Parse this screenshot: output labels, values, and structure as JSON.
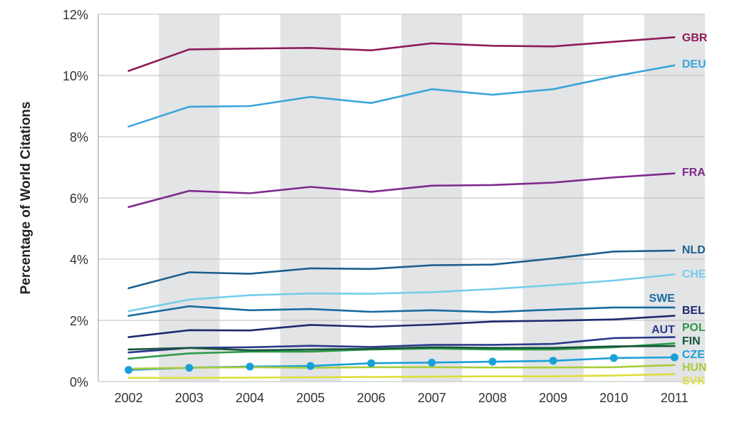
{
  "chart_data": {
    "type": "line",
    "title": "",
    "xlabel": "",
    "ylabel": "Percentage of World Citations",
    "x": [
      "2002",
      "2003",
      "2004",
      "2005",
      "2006",
      "2007",
      "2008",
      "2009",
      "2010",
      "2011"
    ],
    "ylim": [
      0,
      12
    ],
    "yticks": [
      0,
      2,
      4,
      6,
      8,
      10,
      12
    ],
    "ytick_labels": [
      "0%",
      "2%",
      "4%",
      "6%",
      "8%",
      "10%",
      "12%"
    ],
    "grid": "horizontal",
    "shaded_alternate_columns": true,
    "legend": "direct labels at right end of lines",
    "series": [
      {
        "name": "GBR",
        "color": "#8e1c5a",
        "values": [
          10.15,
          10.85,
          10.88,
          10.9,
          10.82,
          11.05,
          10.97,
          10.95,
          11.1,
          11.25
        ]
      },
      {
        "name": "DEU",
        "color": "#3aa6d8",
        "values": [
          8.33,
          8.98,
          9.0,
          9.3,
          9.1,
          9.55,
          9.37,
          9.55,
          9.97,
          10.33
        ]
      },
      {
        "name": "FRA",
        "color": "#7e2a8c",
        "values": [
          5.7,
          6.23,
          6.15,
          6.36,
          6.2,
          6.4,
          6.42,
          6.5,
          6.67,
          6.8
        ]
      },
      {
        "name": "NLD",
        "color": "#1d5f8c",
        "values": [
          3.05,
          3.57,
          3.52,
          3.7,
          3.68,
          3.8,
          3.82,
          4.02,
          4.25,
          4.28
        ]
      },
      {
        "name": "CHE",
        "color": "#78cdea",
        "values": [
          2.3,
          2.68,
          2.82,
          2.88,
          2.87,
          2.92,
          3.02,
          3.15,
          3.3,
          3.5
        ]
      },
      {
        "name": "SWE",
        "color": "#1a6aa0",
        "values": [
          2.15,
          2.46,
          2.33,
          2.37,
          2.28,
          2.33,
          2.27,
          2.35,
          2.42,
          2.42
        ]
      },
      {
        "name": "BEL",
        "color": "#1e2a6e",
        "values": [
          1.45,
          1.68,
          1.67,
          1.85,
          1.79,
          1.86,
          1.96,
          1.99,
          2.03,
          2.15
        ]
      },
      {
        "name": "AUT",
        "color": "#2b3a8a",
        "values": [
          0.95,
          1.1,
          1.12,
          1.17,
          1.13,
          1.2,
          1.2,
          1.23,
          1.42,
          1.45
        ]
      },
      {
        "name": "POL",
        "color": "#2e9a4a",
        "values": [
          0.75,
          0.92,
          0.98,
          0.98,
          1.05,
          1.08,
          1.05,
          1.05,
          1.12,
          1.25
        ]
      },
      {
        "name": "FIN",
        "color": "#17543a",
        "values": [
          1.05,
          1.1,
          1.02,
          1.05,
          1.07,
          1.12,
          1.1,
          1.1,
          1.15,
          1.16
        ]
      },
      {
        "name": "CZE",
        "color": "#1aa0d8",
        "markers": true,
        "values": [
          0.38,
          0.45,
          0.49,
          0.51,
          0.6,
          0.62,
          0.65,
          0.68,
          0.77,
          0.79
        ]
      },
      {
        "name": "HUN",
        "color": "#a9cc3c",
        "values": [
          0.42,
          0.45,
          0.47,
          0.45,
          0.47,
          0.47,
          0.46,
          0.46,
          0.47,
          0.54
        ]
      },
      {
        "name": "SVK",
        "color": "#dede3a",
        "values": [
          0.12,
          0.12,
          0.13,
          0.14,
          0.15,
          0.16,
          0.17,
          0.17,
          0.2,
          0.24
        ]
      }
    ]
  }
}
